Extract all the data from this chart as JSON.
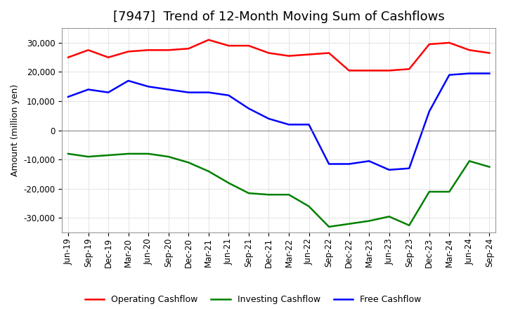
{
  "title": "[7947]  Trend of 12-Month Moving Sum of Cashflows",
  "ylabel": "Amount (million yen)",
  "ylim": [
    -35000,
    35000
  ],
  "yticks": [
    -30000,
    -20000,
    -10000,
    0,
    10000,
    20000,
    30000
  ],
  "background_color": "#ffffff",
  "grid_color": "#aaaaaa",
  "dates": [
    "Jun-19",
    "Sep-19",
    "Dec-19",
    "Mar-20",
    "Jun-20",
    "Sep-20",
    "Dec-20",
    "Mar-21",
    "Jun-21",
    "Sep-21",
    "Dec-21",
    "Mar-22",
    "Jun-22",
    "Sep-22",
    "Dec-22",
    "Mar-23",
    "Jun-23",
    "Sep-23",
    "Dec-23",
    "Mar-24",
    "Jun-24",
    "Sep-24"
  ],
  "operating_cashflow": [
    25000,
    27500,
    25000,
    27000,
    27500,
    27500,
    28000,
    31000,
    29000,
    29000,
    26500,
    25500,
    26000,
    26500,
    20500,
    20500,
    20500,
    21000,
    29500,
    30000,
    27500,
    26500
  ],
  "investing_cashflow": [
    -8000,
    -9000,
    -8500,
    -8000,
    -8000,
    -9000,
    -11000,
    -14000,
    -18000,
    -21500,
    -22000,
    -22000,
    -26000,
    -33000,
    -32000,
    -31000,
    -29500,
    -32500,
    -21000,
    -21000,
    -10500,
    -12500
  ],
  "free_cashflow": [
    11500,
    14000,
    13000,
    17000,
    15000,
    14000,
    13000,
    13000,
    12000,
    7500,
    4000,
    2000,
    2000,
    -11500,
    -11500,
    -10500,
    -13500,
    -13000,
    6500,
    19000,
    19500,
    19500
  ],
  "op_color": "#ff0000",
  "inv_color": "#008000",
  "free_color": "#0000ff",
  "line_width": 1.8,
  "title_fontsize": 13,
  "label_fontsize": 9,
  "tick_fontsize": 8.5
}
